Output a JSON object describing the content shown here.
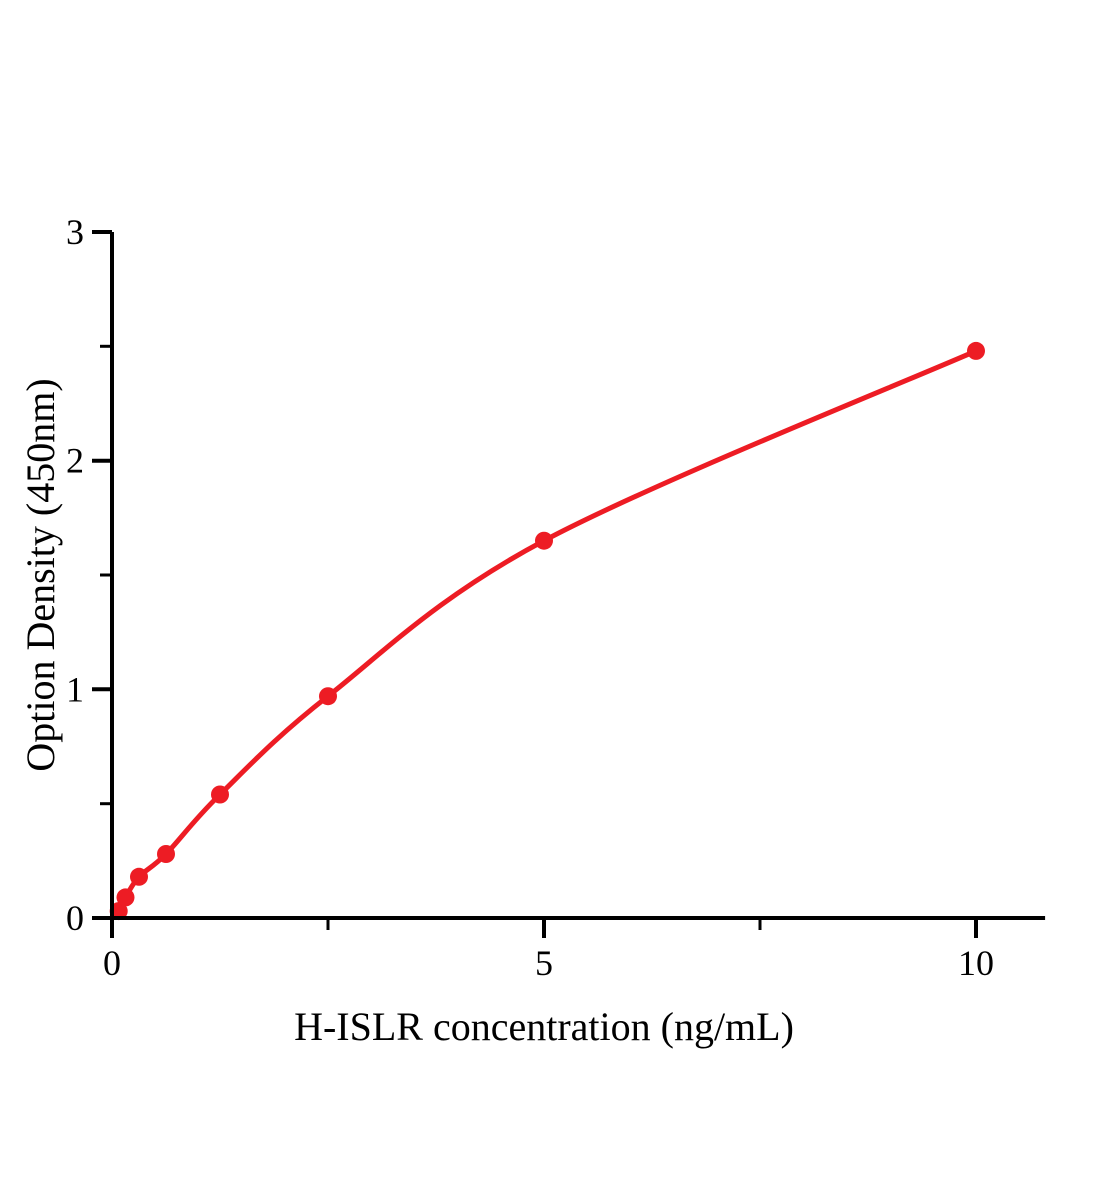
{
  "figure": {
    "background_color": "#ffffff"
  },
  "chart_data": {
    "type": "scatter",
    "title": "",
    "xlabel": "H-ISLR concentration (ng/mL)",
    "ylabel": "Option Density (450nm)",
    "xlim": [
      0,
      10.8
    ],
    "ylim": [
      0,
      3
    ],
    "grid": false,
    "legend": "none",
    "axis_color": "#000000",
    "background_color": "#ffffff",
    "x_major_ticks": [
      0,
      5,
      10
    ],
    "x_tick_labels": [
      "0",
      "5",
      "10"
    ],
    "x_minor_ticks": [
      2.5,
      7.5
    ],
    "y_major_ticks": [
      0,
      1,
      2,
      3
    ],
    "y_tick_labels": [
      "0",
      "1",
      "2",
      "3"
    ],
    "y_minor_ticks": [
      0.5,
      1.5,
      2.5
    ],
    "series": [
      {
        "name": "H-ISLR standard curve",
        "color": "#ED1C24",
        "marker": "circle",
        "marker_size": 9,
        "line_width": 5,
        "line_style": "smooth",
        "x": [
          0.078,
          0.156,
          0.3125,
          0.625,
          1.25,
          2.5,
          5,
          10
        ],
        "y": [
          0.03,
          0.09,
          0.18,
          0.28,
          0.54,
          0.97,
          1.65,
          2.48
        ]
      }
    ]
  }
}
